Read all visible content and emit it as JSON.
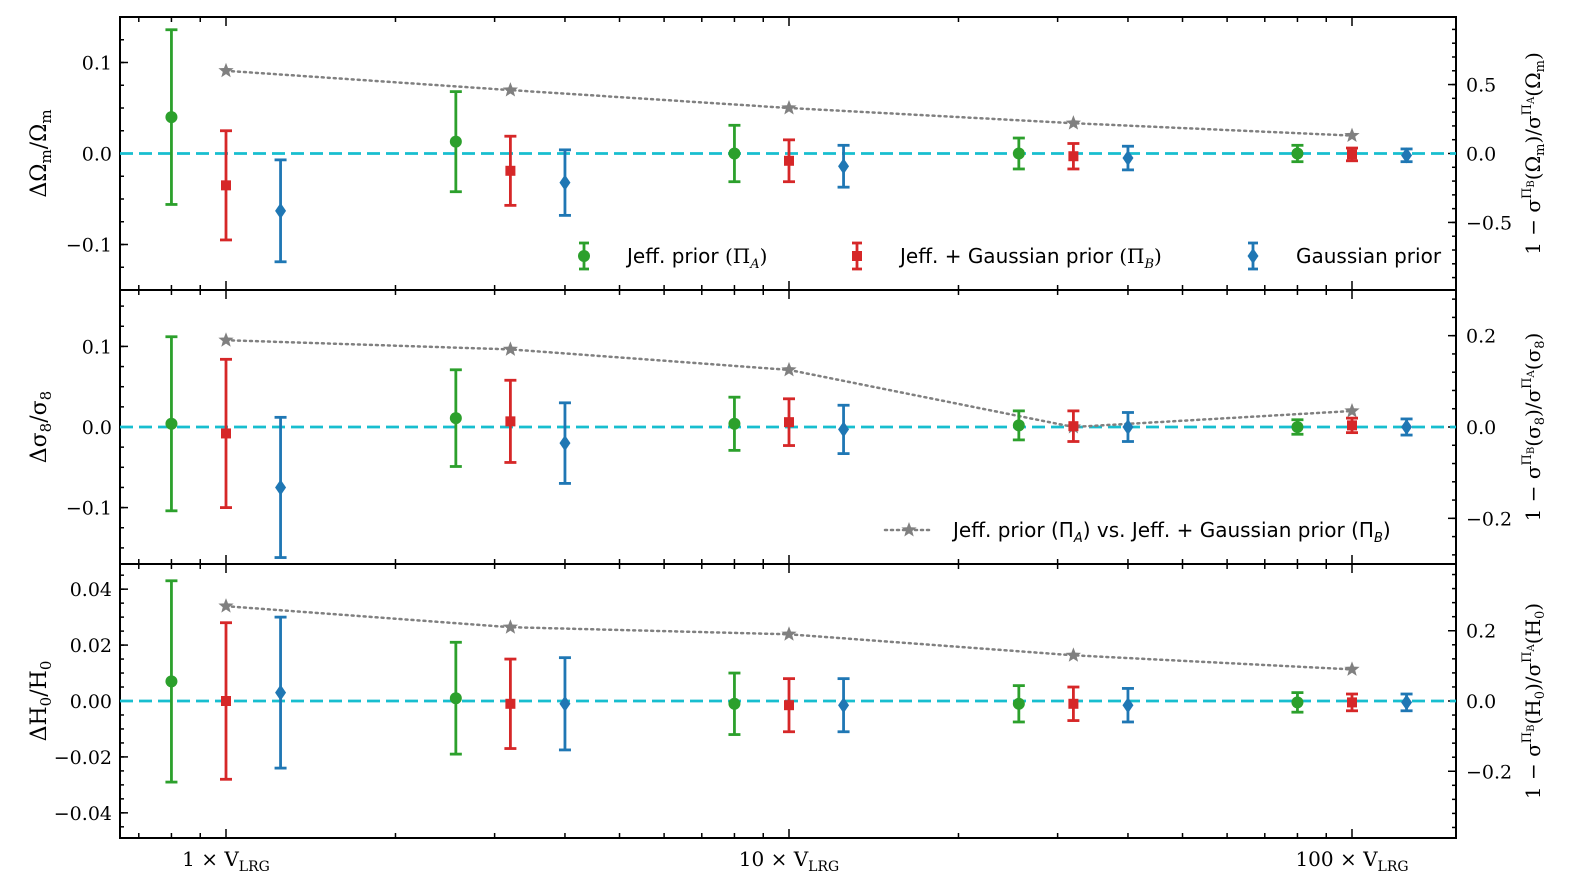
{
  "chart_data": {
    "type": "errorbar",
    "x_scale": "log",
    "x_ticks": [
      {
        "value": 1,
        "label": "1 × V",
        "sub": "LRG"
      },
      {
        "value": 10,
        "label": "10 × V",
        "sub": "LRG"
      },
      {
        "value": 100,
        "label": "100 × V",
        "sub": "LRG"
      }
    ],
    "x_positions": [
      1,
      3.2,
      10,
      32,
      100
    ],
    "series_styles": [
      {
        "name": "Jeff. prior",
        "math": "(Π",
        "sub": "A",
        "close": ")",
        "color": "#2ca02c",
        "marker": "circle",
        "offset": 0.8
      },
      {
        "name": "Jeff. + Gaussian prior",
        "math": "(Π",
        "sub": "B",
        "close": ")",
        "color": "#d62728",
        "marker": "square",
        "offset": 1.0
      },
      {
        "name": "Gaussian prior",
        "math": "",
        "sub": "",
        "close": "",
        "color": "#1f77b4",
        "marker": "diamond",
        "offset": 1.25
      }
    ],
    "ratio_style": {
      "label_pre": "Jeff. prior (Π",
      "sub_a": "A",
      "label_mid": ") vs. Jeff. + Gaussian prior (Π",
      "sub_b": "B",
      "label_post": ")",
      "color": "#808080",
      "marker": "star"
    },
    "panels": [
      {
        "ylabel": {
          "pre": "ΔΩ",
          "sub1": "m",
          "mid": "/Ω",
          "sub2": "m"
        },
        "ylim": [
          -0.15,
          0.15
        ],
        "yticks": [
          0.1,
          0.0,
          -0.1
        ],
        "ytick_labels": [
          "0.1",
          "0.0",
          "−0.1"
        ],
        "y2label": {
          "pre": "1 − σ",
          "sup1": "Π",
          "sup1sub": "B",
          "mid": "(Ω",
          "midsub": "m",
          "mid2": ")/σ",
          "sup2": "Π",
          "sup2sub": "A",
          "post": "(Ω",
          "postsub": "m",
          "end": ")"
        },
        "y2lim": [
          -0.99,
          0.99
        ],
        "y2ticks": [
          0.5,
          0.0,
          -0.5
        ],
        "y2tick_labels": [
          "0.5",
          "0.0",
          "−0.5"
        ],
        "series": [
          {
            "y": [
              0.04,
              0.013,
              0.0,
              0.0,
              0.0
            ],
            "err": [
              0.096,
              0.055,
              0.031,
              0.017,
              0.009
            ]
          },
          {
            "y": [
              -0.035,
              -0.019,
              -0.008,
              -0.003,
              -0.001
            ],
            "err": [
              0.06,
              0.038,
              0.023,
              0.014,
              0.007
            ]
          },
          {
            "y": [
              -0.063,
              -0.032,
              -0.014,
              -0.005,
              -0.002
            ],
            "err": [
              0.056,
              0.036,
              0.023,
              0.013,
              0.007
            ]
          }
        ],
        "ratio": [
          0.6,
          0.46,
          0.33,
          0.22,
          0.13
        ],
        "legend": "series"
      },
      {
        "ylabel": {
          "pre": "Δσ",
          "sub1": "8",
          "mid": "/σ",
          "sub2": "8"
        },
        "ylim": [
          -0.17,
          0.17
        ],
        "yticks": [
          0.1,
          0.0,
          -0.1
        ],
        "ytick_labels": [
          "0.1",
          "0.0",
          "−0.1"
        ],
        "y2label": {
          "pre": "1 − σ",
          "sup1": "Π",
          "sup1sub": "B",
          "mid": "(σ",
          "midsub": "8",
          "mid2": ")/σ",
          "sup2": "Π",
          "sup2sub": "A",
          "post": "(σ",
          "postsub": "8",
          "end": ")"
        },
        "y2lim": [
          -0.3,
          0.3
        ],
        "y2ticks": [
          0.2,
          0.0,
          -0.2
        ],
        "y2tick_labels": [
          "0.2",
          "0.0",
          "−0.2"
        ],
        "series": [
          {
            "y": [
              0.004,
              0.011,
              0.004,
              0.002,
              0.0
            ],
            "err": [
              0.108,
              0.06,
              0.033,
              0.018,
              0.009
            ]
          },
          {
            "y": [
              -0.008,
              0.007,
              0.006,
              0.001,
              0.002
            ],
            "err": [
              0.092,
              0.051,
              0.029,
              0.019,
              0.009
            ]
          },
          {
            "y": [
              -0.075,
              -0.02,
              -0.003,
              0.0,
              0.0
            ],
            "err": [
              0.087,
              0.05,
              0.03,
              0.018,
              0.01
            ]
          }
        ],
        "ratio": [
          0.19,
          0.17,
          0.125,
          0.0,
          0.035
        ],
        "legend": "ratio"
      },
      {
        "ylabel": {
          "pre": "ΔH",
          "sub1": "0",
          "mid": "/H",
          "sub2": "0"
        },
        "ylim": [
          -0.049,
          0.049
        ],
        "yticks": [
          0.04,
          0.02,
          0.0,
          -0.02,
          -0.04
        ],
        "ytick_labels": [
          "0.04",
          "0.02",
          "0.00",
          "−0.02",
          "−0.04"
        ],
        "y2label": {
          "pre": "1 − σ",
          "sup1": "Π",
          "sup1sub": "B",
          "mid": "(H",
          "midsub": "0",
          "mid2": ")/σ",
          "sup2": "Π",
          "sup2sub": "A",
          "post": "(H",
          "postsub": "0",
          "end": ")"
        },
        "y2lim": [
          -0.39,
          0.39
        ],
        "y2ticks": [
          0.2,
          0.0,
          -0.2
        ],
        "y2tick_labels": [
          "0.2",
          "0.0",
          "−0.2"
        ],
        "series": [
          {
            "y": [
              0.007,
              0.001,
              -0.001,
              -0.001,
              -0.0005
            ],
            "err": [
              0.036,
              0.02,
              0.011,
              0.0065,
              0.0035
            ]
          },
          {
            "y": [
              0.0,
              -0.001,
              -0.0015,
              -0.001,
              -0.0005
            ],
            "err": [
              0.028,
              0.016,
              0.0095,
              0.006,
              0.003
            ]
          },
          {
            "y": [
              0.003,
              -0.001,
              -0.0015,
              -0.0015,
              -0.0005
            ],
            "err": [
              0.027,
              0.0165,
              0.0095,
              0.006,
              0.003
            ]
          }
        ],
        "ratio": [
          0.27,
          0.21,
          0.19,
          0.13,
          0.09
        ],
        "legend": "none"
      }
    ]
  }
}
